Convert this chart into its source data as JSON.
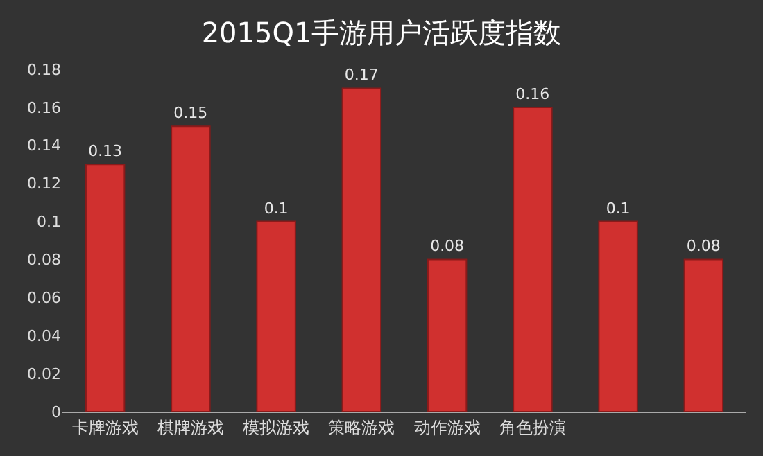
{
  "chart_data": {
    "type": "bar",
    "title": "2015Q1手游用户活跃度指数",
    "categories": [
      "卡牌游戏",
      "棋牌游戏",
      "模拟游戏",
      "策略游戏",
      "动作游戏",
      "角色扮演",
      null,
      null
    ],
    "values": [
      0.13,
      0.15,
      0.1,
      0.17,
      0.08,
      0.16,
      0.1,
      0.08
    ],
    "color": "#d0302f",
    "ylim": [
      0,
      0.18
    ],
    "yticks": [
      0,
      0.02,
      0.04,
      0.06,
      0.08,
      0.1,
      0.12,
      0.14,
      0.16,
      0.18
    ],
    "grid": false,
    "data_labels": true
  }
}
